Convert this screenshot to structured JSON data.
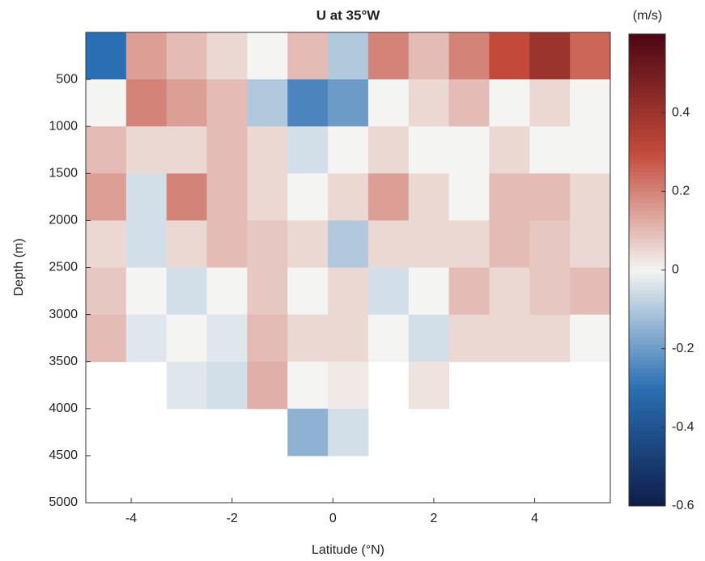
{
  "chart_data": {
    "type": "heatmap",
    "title": "U at 35°W",
    "xlabel": "Latitude (°N)",
    "ylabel": "Depth (m)",
    "colorbar_label": "(m/s)",
    "x": [
      -4.5,
      -3.7,
      -2.9,
      -2.1,
      -1.3,
      -0.5,
      0.3,
      1.1,
      1.9,
      2.7,
      3.5,
      4.3,
      5.1
    ],
    "y": [
      250,
      750,
      1250,
      1750,
      2250,
      2750,
      3250,
      3750,
      4250,
      4750
    ],
    "z": [
      [
        -0.3,
        0.15,
        0.1,
        0.05,
        0.0,
        0.1,
        -0.1,
        0.2,
        0.1,
        0.2,
        0.3,
        0.4,
        0.25
      ],
      [
        0.0,
        0.2,
        0.15,
        0.1,
        -0.1,
        -0.25,
        -0.2,
        0.0,
        0.05,
        0.1,
        0.0,
        0.05,
        0.0
      ],
      [
        0.1,
        0.05,
        0.05,
        0.1,
        0.05,
        -0.05,
        0.0,
        0.05,
        0.0,
        0.0,
        0.05,
        0.0,
        0.0
      ],
      [
        0.15,
        -0.05,
        0.2,
        0.1,
        0.05,
        0.0,
        0.05,
        0.15,
        0.05,
        0.0,
        0.1,
        0.1,
        0.05
      ],
      [
        0.05,
        -0.05,
        0.05,
        0.1,
        0.08,
        0.05,
        -0.1,
        0.05,
        0.05,
        0.05,
        0.1,
        0.08,
        0.05
      ],
      [
        0.08,
        0.0,
        -0.05,
        0.0,
        0.08,
        0.0,
        0.05,
        -0.05,
        0.0,
        0.1,
        0.05,
        0.08,
        0.1
      ],
      [
        0.1,
        -0.03,
        0.0,
        -0.03,
        0.1,
        0.05,
        0.05,
        0.0,
        -0.05,
        0.05,
        0.05,
        0.05,
        0.0
      ],
      [
        null,
        null,
        -0.03,
        -0.05,
        0.12,
        0.0,
        0.02,
        null,
        0.03,
        null,
        null,
        null,
        null
      ],
      [
        null,
        null,
        null,
        null,
        null,
        -0.15,
        -0.05,
        null,
        null,
        null,
        null,
        null,
        null
      ],
      [
        null,
        null,
        null,
        null,
        null,
        null,
        null,
        null,
        null,
        null,
        null,
        null,
        null
      ]
    ],
    "xlim": [
      -4.9,
      5.5
    ],
    "ylim": [
      0,
      5000
    ],
    "y_reversed": true,
    "xticks": [
      -4,
      -2,
      0,
      2,
      4
    ],
    "yticks": [
      500,
      1000,
      1500,
      2000,
      2500,
      3000,
      3500,
      4000,
      4500,
      5000
    ],
    "clim": [
      -0.6,
      0.6
    ],
    "cticks": [
      -0.6,
      -0.4,
      -0.2,
      0,
      0.2,
      0.4
    ],
    "colormap": [
      "#0e1d4a",
      "#2a6fb3",
      "#f4f4f2",
      "#c34a3a",
      "#4c0714"
    ]
  }
}
